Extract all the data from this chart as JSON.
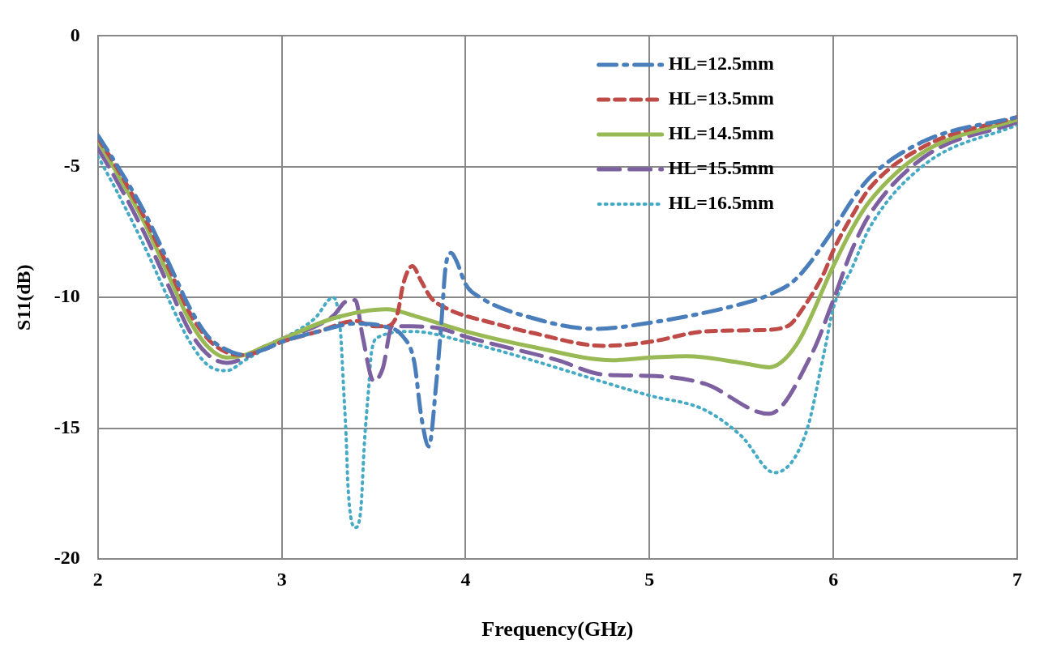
{
  "chart_data": {
    "type": "line",
    "xlabel": "Frequency(GHz)",
    "ylabel": "S11(dB)",
    "xlim": [
      2,
      7
    ],
    "xticks": [
      2,
      3,
      4,
      5,
      6,
      7
    ],
    "ylim": [
      -20,
      0
    ],
    "yticks": [
      -20,
      -15,
      -10,
      -5,
      0
    ],
    "grid": true,
    "legend": "top right",
    "marker": "none",
    "series": [
      {
        "name": "HL=12.5mm",
        "color": "#4a7ebb",
        "line_style": "dashed",
        "x": [
          2,
          2.1,
          2.25,
          2.4,
          2.5,
          2.6,
          2.7,
          2.8,
          2.9,
          3,
          3.2,
          3.4,
          3.55,
          3.66,
          3.72,
          3.76,
          3.8,
          3.84,
          3.87,
          3.89,
          3.92,
          3.95,
          4,
          4.08,
          4.37,
          4.7,
          5,
          5.5,
          5.65,
          5.8,
          6,
          6.1,
          6.2,
          6.5,
          7
        ],
        "values": [
          -3.8,
          -4.9,
          -6.7,
          -8.9,
          -10.4,
          -11.5,
          -12,
          -12.2,
          -12,
          -11.7,
          -11.3,
          -11,
          -11.1,
          -11.5,
          -12.45,
          -14.6,
          -15.7,
          -13.3,
          -10.8,
          -8.9,
          -8.3,
          -8.6,
          -9.5,
          -10,
          -10.8,
          -11.2,
          -10.97,
          -10.25,
          -9.9,
          -9.27,
          -7.4,
          -6.3,
          -5.4,
          -4,
          -3.1
        ]
      },
      {
        "name": "HL=13.5mm",
        "color": "#be4b48",
        "line_style": "dashed",
        "x": [
          2,
          2.1,
          2.25,
          2.4,
          2.5,
          2.6,
          2.7,
          2.8,
          2.9,
          3,
          3.2,
          3.4,
          3.5,
          3.57,
          3.63,
          3.66,
          3.71,
          3.76,
          3.81,
          3.89,
          4.16,
          4.36,
          4.75,
          5,
          5.3,
          5.6,
          5.75,
          5.85,
          5.95,
          6,
          6.1,
          6.2,
          6.5,
          7
        ],
        "values": [
          -3.9,
          -5,
          -6.9,
          -9.1,
          -10.6,
          -11.6,
          -12.1,
          -12.2,
          -12,
          -11.7,
          -11.3,
          -10.9,
          -11.1,
          -11.1,
          -10.6,
          -9.5,
          -8.8,
          -9.4,
          -10,
          -10.4,
          -11,
          -11.35,
          -11.85,
          -11.7,
          -11.3,
          -11.25,
          -11.1,
          -10.25,
          -9.05,
          -8.2,
          -6.9,
          -5.8,
          -4.2,
          -3.1
        ]
      },
      {
        "name": "HL=14.5mm",
        "color": "#98b954",
        "line_style": "solid",
        "x": [
          2,
          2.1,
          2.25,
          2.4,
          2.5,
          2.6,
          2.7,
          2.8,
          2.9,
          3,
          3.28,
          3.57,
          3.72,
          4,
          4.37,
          4.8,
          5,
          5.2,
          5.5,
          5.65,
          5.8,
          6,
          6.1,
          6.2,
          6.5,
          7
        ],
        "values": [
          -4,
          -5.2,
          -7.1,
          -9.4,
          -10.9,
          -11.9,
          -12.3,
          -12.2,
          -11.9,
          -11.6,
          -10.8,
          -10.45,
          -10.7,
          -11.3,
          -11.9,
          -12.4,
          -12.3,
          -12.25,
          -12.5,
          -12.67,
          -11.8,
          -8.8,
          -7.4,
          -6.3,
          -4.4,
          -3.2
        ]
      },
      {
        "name": "HL=15.5mm",
        "color": "#7d60a0",
        "line_style": "dashed",
        "x": [
          2,
          2.1,
          2.25,
          2.4,
          2.5,
          2.6,
          2.7,
          2.8,
          2.9,
          3,
          3.28,
          3.35,
          3.4,
          3.44,
          3.5,
          3.55,
          3.6,
          3.66,
          3.87,
          4,
          4.5,
          4.75,
          5,
          5.3,
          5.65,
          5.88,
          6,
          6.1,
          6.2,
          6.5,
          7
        ],
        "values": [
          -4.3,
          -5.5,
          -7.5,
          -9.8,
          -11.3,
          -12.2,
          -12.5,
          -12.3,
          -11.9,
          -11.6,
          -10.7,
          -10.15,
          -10.1,
          -11.5,
          -13.2,
          -12.7,
          -11.1,
          -11.1,
          -11.2,
          -11.5,
          -12.4,
          -12.95,
          -13,
          -13.3,
          -14.45,
          -12.2,
          -10.1,
          -8.2,
          -6.8,
          -4.6,
          -3.3
        ]
      },
      {
        "name": "HL=16.5mm",
        "color": "#46aac5",
        "line_style": "dotted",
        "x": [
          2,
          2.1,
          2.25,
          2.4,
          2.5,
          2.6,
          2.7,
          2.8,
          2.9,
          3,
          3.18,
          3.28,
          3.32,
          3.335,
          3.35,
          3.36,
          3.4,
          3.43,
          3.45,
          3.47,
          3.49,
          3.53,
          3.71,
          4,
          5,
          5.3,
          5.5,
          5.68,
          5.85,
          5.95,
          6,
          6.1,
          6.2,
          6.5,
          7
        ],
        "values": [
          -4.6,
          -5.9,
          -8,
          -10.3,
          -11.7,
          -12.6,
          -12.8,
          -12.4,
          -12,
          -11.6,
          -10.8,
          -10,
          -11.35,
          -13.3,
          -15.3,
          -17.2,
          -18.8,
          -18.1,
          -15.5,
          -13.7,
          -12,
          -11.5,
          -11.3,
          -11.7,
          -13.75,
          -14.3,
          -15.3,
          -16.7,
          -15.2,
          -12.1,
          -10.4,
          -8.9,
          -7.3,
          -4.9,
          -3.4
        ]
      }
    ]
  }
}
